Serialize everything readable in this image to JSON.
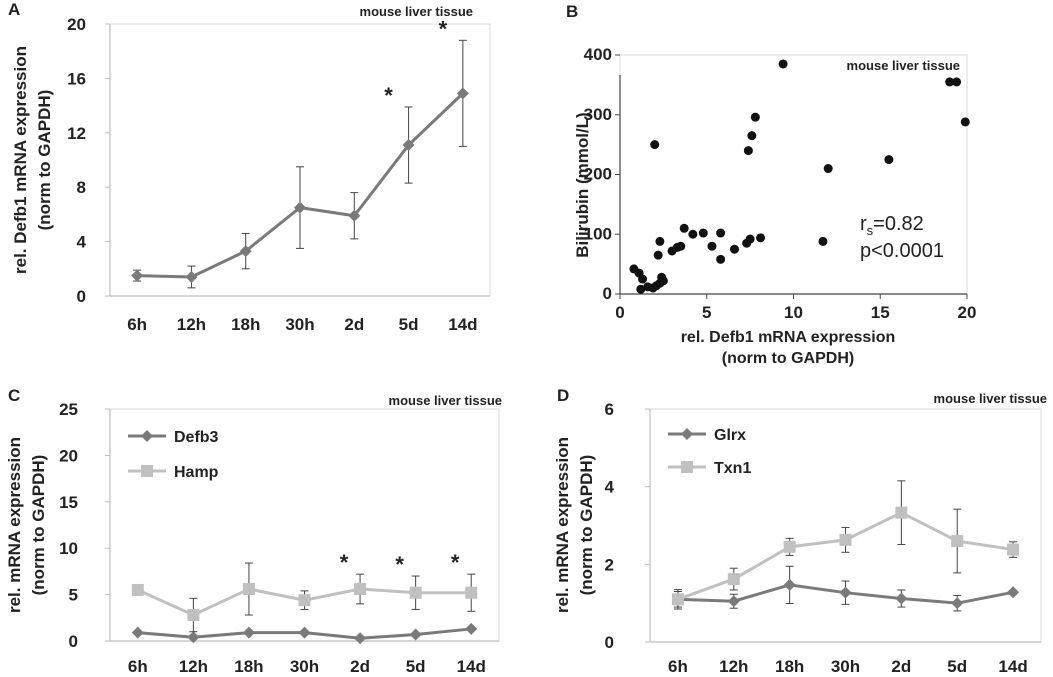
{
  "chart_data": [
    {
      "panel": "A",
      "type": "line",
      "title": "mouse liver tissue",
      "ylabel_line1": "rel. Defb1 mRNA expression",
      "ylabel_line2": "(norm to GAPDH)",
      "xlabel": "",
      "categories": [
        "6h",
        "12h",
        "18h",
        "30h",
        "2d",
        "5d",
        "14d"
      ],
      "ylim": [
        0,
        20
      ],
      "yticks": [
        0,
        4,
        8,
        12,
        16,
        20
      ],
      "series": [
        {
          "name": "Defb1",
          "color": "#7a7a7a",
          "marker": "diamond",
          "values": [
            1.5,
            1.4,
            3.3,
            6.5,
            5.9,
            11.1,
            14.9
          ],
          "errors": [
            0.4,
            0.8,
            1.3,
            3.0,
            1.7,
            2.8,
            3.9
          ]
        }
      ],
      "significance": [
        "",
        "",
        "",
        "",
        "",
        "*",
        "*"
      ]
    },
    {
      "panel": "B",
      "type": "scatter",
      "title": "mouse liver tissue",
      "xlabel_line1": "rel. Defb1 mRNA expression",
      "xlabel_line2": "(norm to GAPDH)",
      "ylabel": "Bilirubin (mmol/L)",
      "xlim": [
        0,
        20
      ],
      "ylim": [
        0,
        400
      ],
      "xticks": [
        0,
        5,
        10,
        15,
        20
      ],
      "yticks": [
        0,
        100,
        200,
        300,
        400
      ],
      "stat_r_prefix": "r",
      "stat_r_sub": "s",
      "stat_r_value": "=0.82",
      "stat_p": "p<0.0001",
      "points": [
        [
          0.8,
          42
        ],
        [
          1.1,
          35
        ],
        [
          1.3,
          25
        ],
        [
          1.2,
          8
        ],
        [
          1.6,
          12
        ],
        [
          1.9,
          10
        ],
        [
          2.1,
          14
        ],
        [
          2.3,
          18
        ],
        [
          2.4,
          28
        ],
        [
          2.5,
          22
        ],
        [
          2.2,
          65
        ],
        [
          2.3,
          88
        ],
        [
          2.0,
          250
        ],
        [
          3.0,
          72
        ],
        [
          3.3,
          78
        ],
        [
          3.5,
          80
        ],
        [
          3.7,
          110
        ],
        [
          4.2,
          100
        ],
        [
          4.8,
          102
        ],
        [
          5.3,
          80
        ],
        [
          5.8,
          102
        ],
        [
          5.8,
          58
        ],
        [
          6.6,
          75
        ],
        [
          7.3,
          85
        ],
        [
          7.5,
          92
        ],
        [
          8.1,
          94
        ],
        [
          7.4,
          240
        ],
        [
          7.6,
          265
        ],
        [
          7.8,
          296
        ],
        [
          9.4,
          385
        ],
        [
          11.7,
          88
        ],
        [
          12.0,
          210
        ],
        [
          15.5,
          225
        ],
        [
          19.0,
          355
        ],
        [
          19.4,
          355
        ],
        [
          19.9,
          288
        ]
      ]
    },
    {
      "panel": "C",
      "type": "line",
      "title": "mouse liver tissue",
      "ylabel_line1": "rel.  mRNA expression",
      "ylabel_line2": "(norm to GAPDH)",
      "categories": [
        "6h",
        "12h",
        "18h",
        "30h",
        "2d",
        "5d",
        "14d"
      ],
      "ylim": [
        0,
        25
      ],
      "yticks": [
        0,
        5,
        10,
        15,
        20,
        25
      ],
      "series": [
        {
          "name": "Defb3",
          "color": "#7a7a7a",
          "marker": "diamond",
          "values": [
            0.9,
            0.4,
            0.9,
            0.9,
            0.3,
            0.7,
            1.3
          ],
          "errors": [
            0,
            0,
            0,
            0,
            0,
            0,
            0
          ]
        },
        {
          "name": "Hamp",
          "color": "#c0c0c0",
          "marker": "square",
          "values": [
            5.5,
            2.8,
            5.6,
            4.4,
            5.6,
            5.2,
            5.2
          ],
          "errors": [
            0.4,
            1.8,
            2.8,
            1.0,
            1.6,
            1.8,
            2.0
          ]
        }
      ],
      "significance": [
        "",
        "",
        "",
        "",
        "*",
        "*",
        "*"
      ]
    },
    {
      "panel": "D",
      "type": "line",
      "title": "mouse liver tissue",
      "ylabel_line1": "rel.  mRNA expression",
      "ylabel_line2": "(norm to GAPDH)",
      "categories": [
        "6h",
        "12h",
        "18h",
        "30h",
        "2d",
        "5d",
        "14d"
      ],
      "ylim": [
        0,
        6
      ],
      "yticks": [
        0,
        2,
        4,
        6
      ],
      "series": [
        {
          "name": "Glrx",
          "color": "#7a7a7a",
          "marker": "diamond",
          "values": [
            1.1,
            1.05,
            1.47,
            1.27,
            1.12,
            1.0,
            1.28
          ],
          "errors": [
            0.25,
            0.18,
            0.48,
            0.3,
            0.22,
            0.2,
            0.05
          ]
        },
        {
          "name": "Txn1",
          "color": "#c0c0c0",
          "marker": "square",
          "values": [
            1.1,
            1.62,
            2.45,
            2.63,
            3.33,
            2.6,
            2.38
          ],
          "errors": [
            0.2,
            0.28,
            0.22,
            0.32,
            0.82,
            0.82,
            0.2
          ]
        }
      ],
      "significance": [
        "",
        "",
        "",
        "",
        "",
        "",
        ""
      ]
    }
  ]
}
